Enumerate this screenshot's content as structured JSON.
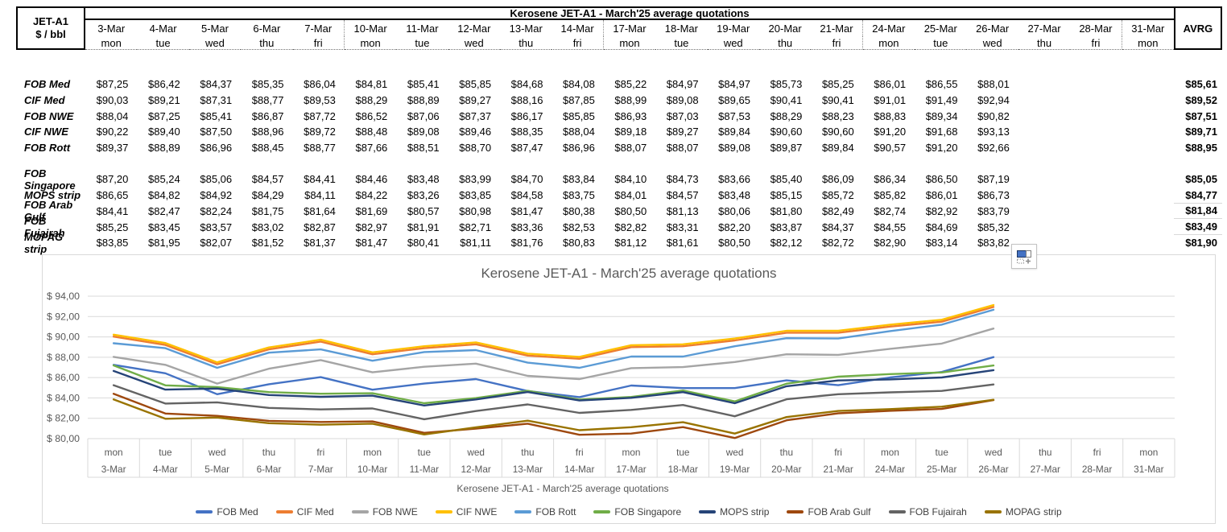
{
  "table": {
    "corner_line1": "JET-A1",
    "corner_line2": "$ / bbl",
    "title": "Kerosene JET-A1 - March'25 average quotations",
    "avrg_header": "AVRG",
    "currency_prefix": "$",
    "group_rows": [
      [
        0,
        1,
        2,
        3,
        4
      ],
      [
        5,
        6,
        7,
        8,
        9
      ]
    ],
    "avg_underline_rows": [
      6,
      7,
      8
    ],
    "week_separator_after": [
      4,
      9,
      14,
      19
    ]
  },
  "chart_data": {
    "type": "line",
    "title": "Kerosene JET-A1 - March'25 average quotations",
    "x_axis_title": "Kerosene JET-A1 - March'25 average quotations",
    "legend_position": "bottom",
    "grid": true,
    "ylim": [
      80,
      94
    ],
    "ystep": 2,
    "y_tick_prefix": "$ ",
    "categories": [
      {
        "date": "3-Mar",
        "day": "mon"
      },
      {
        "date": "4-Mar",
        "day": "tue"
      },
      {
        "date": "5-Mar",
        "day": "wed"
      },
      {
        "date": "6-Mar",
        "day": "thu"
      },
      {
        "date": "7-Mar",
        "day": "fri"
      },
      {
        "date": "10-Mar",
        "day": "mon"
      },
      {
        "date": "11-Mar",
        "day": "tue"
      },
      {
        "date": "12-Mar",
        "day": "wed"
      },
      {
        "date": "13-Mar",
        "day": "thu"
      },
      {
        "date": "14-Mar",
        "day": "fri"
      },
      {
        "date": "17-Mar",
        "day": "mon"
      },
      {
        "date": "18-Mar",
        "day": "tue"
      },
      {
        "date": "19-Mar",
        "day": "wed"
      },
      {
        "date": "20-Mar",
        "day": "thu"
      },
      {
        "date": "21-Mar",
        "day": "fri"
      },
      {
        "date": "24-Mar",
        "day": "mon"
      },
      {
        "date": "25-Mar",
        "day": "tue"
      },
      {
        "date": "26-Mar",
        "day": "wed"
      },
      {
        "date": "27-Mar",
        "day": "thu"
      },
      {
        "date": "28-Mar",
        "day": "fri"
      },
      {
        "date": "31-Mar",
        "day": "mon"
      }
    ],
    "series": [
      {
        "name": "FOB Med",
        "color": "#4472C4",
        "avg": 85.61,
        "values": [
          87.25,
          86.42,
          84.37,
          85.35,
          86.04,
          84.81,
          85.41,
          85.85,
          84.68,
          84.08,
          85.22,
          84.97,
          84.97,
          85.73,
          85.25,
          86.01,
          86.55,
          88.01
        ]
      },
      {
        "name": "CIF Med",
        "color": "#ED7D31",
        "avg": 89.52,
        "values": [
          90.03,
          89.21,
          87.31,
          88.77,
          89.53,
          88.29,
          88.89,
          89.27,
          88.16,
          87.85,
          88.99,
          89.08,
          89.65,
          90.41,
          90.41,
          91.01,
          91.49,
          92.94
        ]
      },
      {
        "name": "FOB NWE",
        "color": "#A5A5A5",
        "avg": 87.51,
        "values": [
          88.04,
          87.25,
          85.41,
          86.87,
          87.72,
          86.52,
          87.06,
          87.37,
          86.17,
          85.85,
          86.93,
          87.03,
          87.53,
          88.29,
          88.23,
          88.83,
          89.34,
          90.82
        ]
      },
      {
        "name": "CIF NWE",
        "color": "#FFC000",
        "avg": 89.71,
        "values": [
          90.22,
          89.4,
          87.5,
          88.96,
          89.72,
          88.48,
          89.08,
          89.46,
          88.35,
          88.04,
          89.18,
          89.27,
          89.84,
          90.6,
          90.6,
          91.2,
          91.68,
          93.13
        ]
      },
      {
        "name": "FOB Rott",
        "color": "#5B9BD5",
        "avg": 88.95,
        "values": [
          89.37,
          88.89,
          86.96,
          88.45,
          88.77,
          87.66,
          88.51,
          88.7,
          87.47,
          86.96,
          88.07,
          88.07,
          89.08,
          89.87,
          89.84,
          90.57,
          91.2,
          92.66
        ]
      },
      {
        "name": "FOB Singapore",
        "color": "#70AD47",
        "avg": 85.05,
        "values": [
          87.2,
          85.24,
          85.06,
          84.57,
          84.41,
          84.46,
          83.48,
          83.99,
          84.7,
          83.84,
          84.1,
          84.73,
          83.66,
          85.4,
          86.09,
          86.34,
          86.5,
          87.19
        ]
      },
      {
        "name": "MOPS strip",
        "color": "#264478",
        "avg": 84.77,
        "values": [
          86.65,
          84.82,
          84.92,
          84.29,
          84.11,
          84.22,
          83.26,
          83.85,
          84.58,
          83.75,
          84.01,
          84.57,
          83.48,
          85.15,
          85.72,
          85.82,
          86.01,
          86.73
        ]
      },
      {
        "name": "FOB Arab Gulf",
        "color": "#9E480E",
        "avg": 81.84,
        "values": [
          84.41,
          82.47,
          82.24,
          81.75,
          81.64,
          81.69,
          80.57,
          80.98,
          81.47,
          80.38,
          80.5,
          81.13,
          80.06,
          81.8,
          82.49,
          82.74,
          82.92,
          83.79
        ]
      },
      {
        "name": "FOB Fujairah",
        "color": "#636363",
        "avg": 83.49,
        "values": [
          85.25,
          83.45,
          83.57,
          83.02,
          82.87,
          82.97,
          81.91,
          82.71,
          83.36,
          82.53,
          82.82,
          83.31,
          82.2,
          83.87,
          84.37,
          84.55,
          84.69,
          85.32
        ]
      },
      {
        "name": "MOPAG strip",
        "color": "#997300",
        "avg": 81.9,
        "values": [
          83.85,
          81.95,
          82.07,
          81.52,
          81.37,
          81.47,
          80.41,
          81.11,
          81.76,
          80.83,
          81.12,
          81.61,
          80.5,
          82.12,
          82.72,
          82.9,
          83.14,
          83.82
        ]
      }
    ]
  }
}
